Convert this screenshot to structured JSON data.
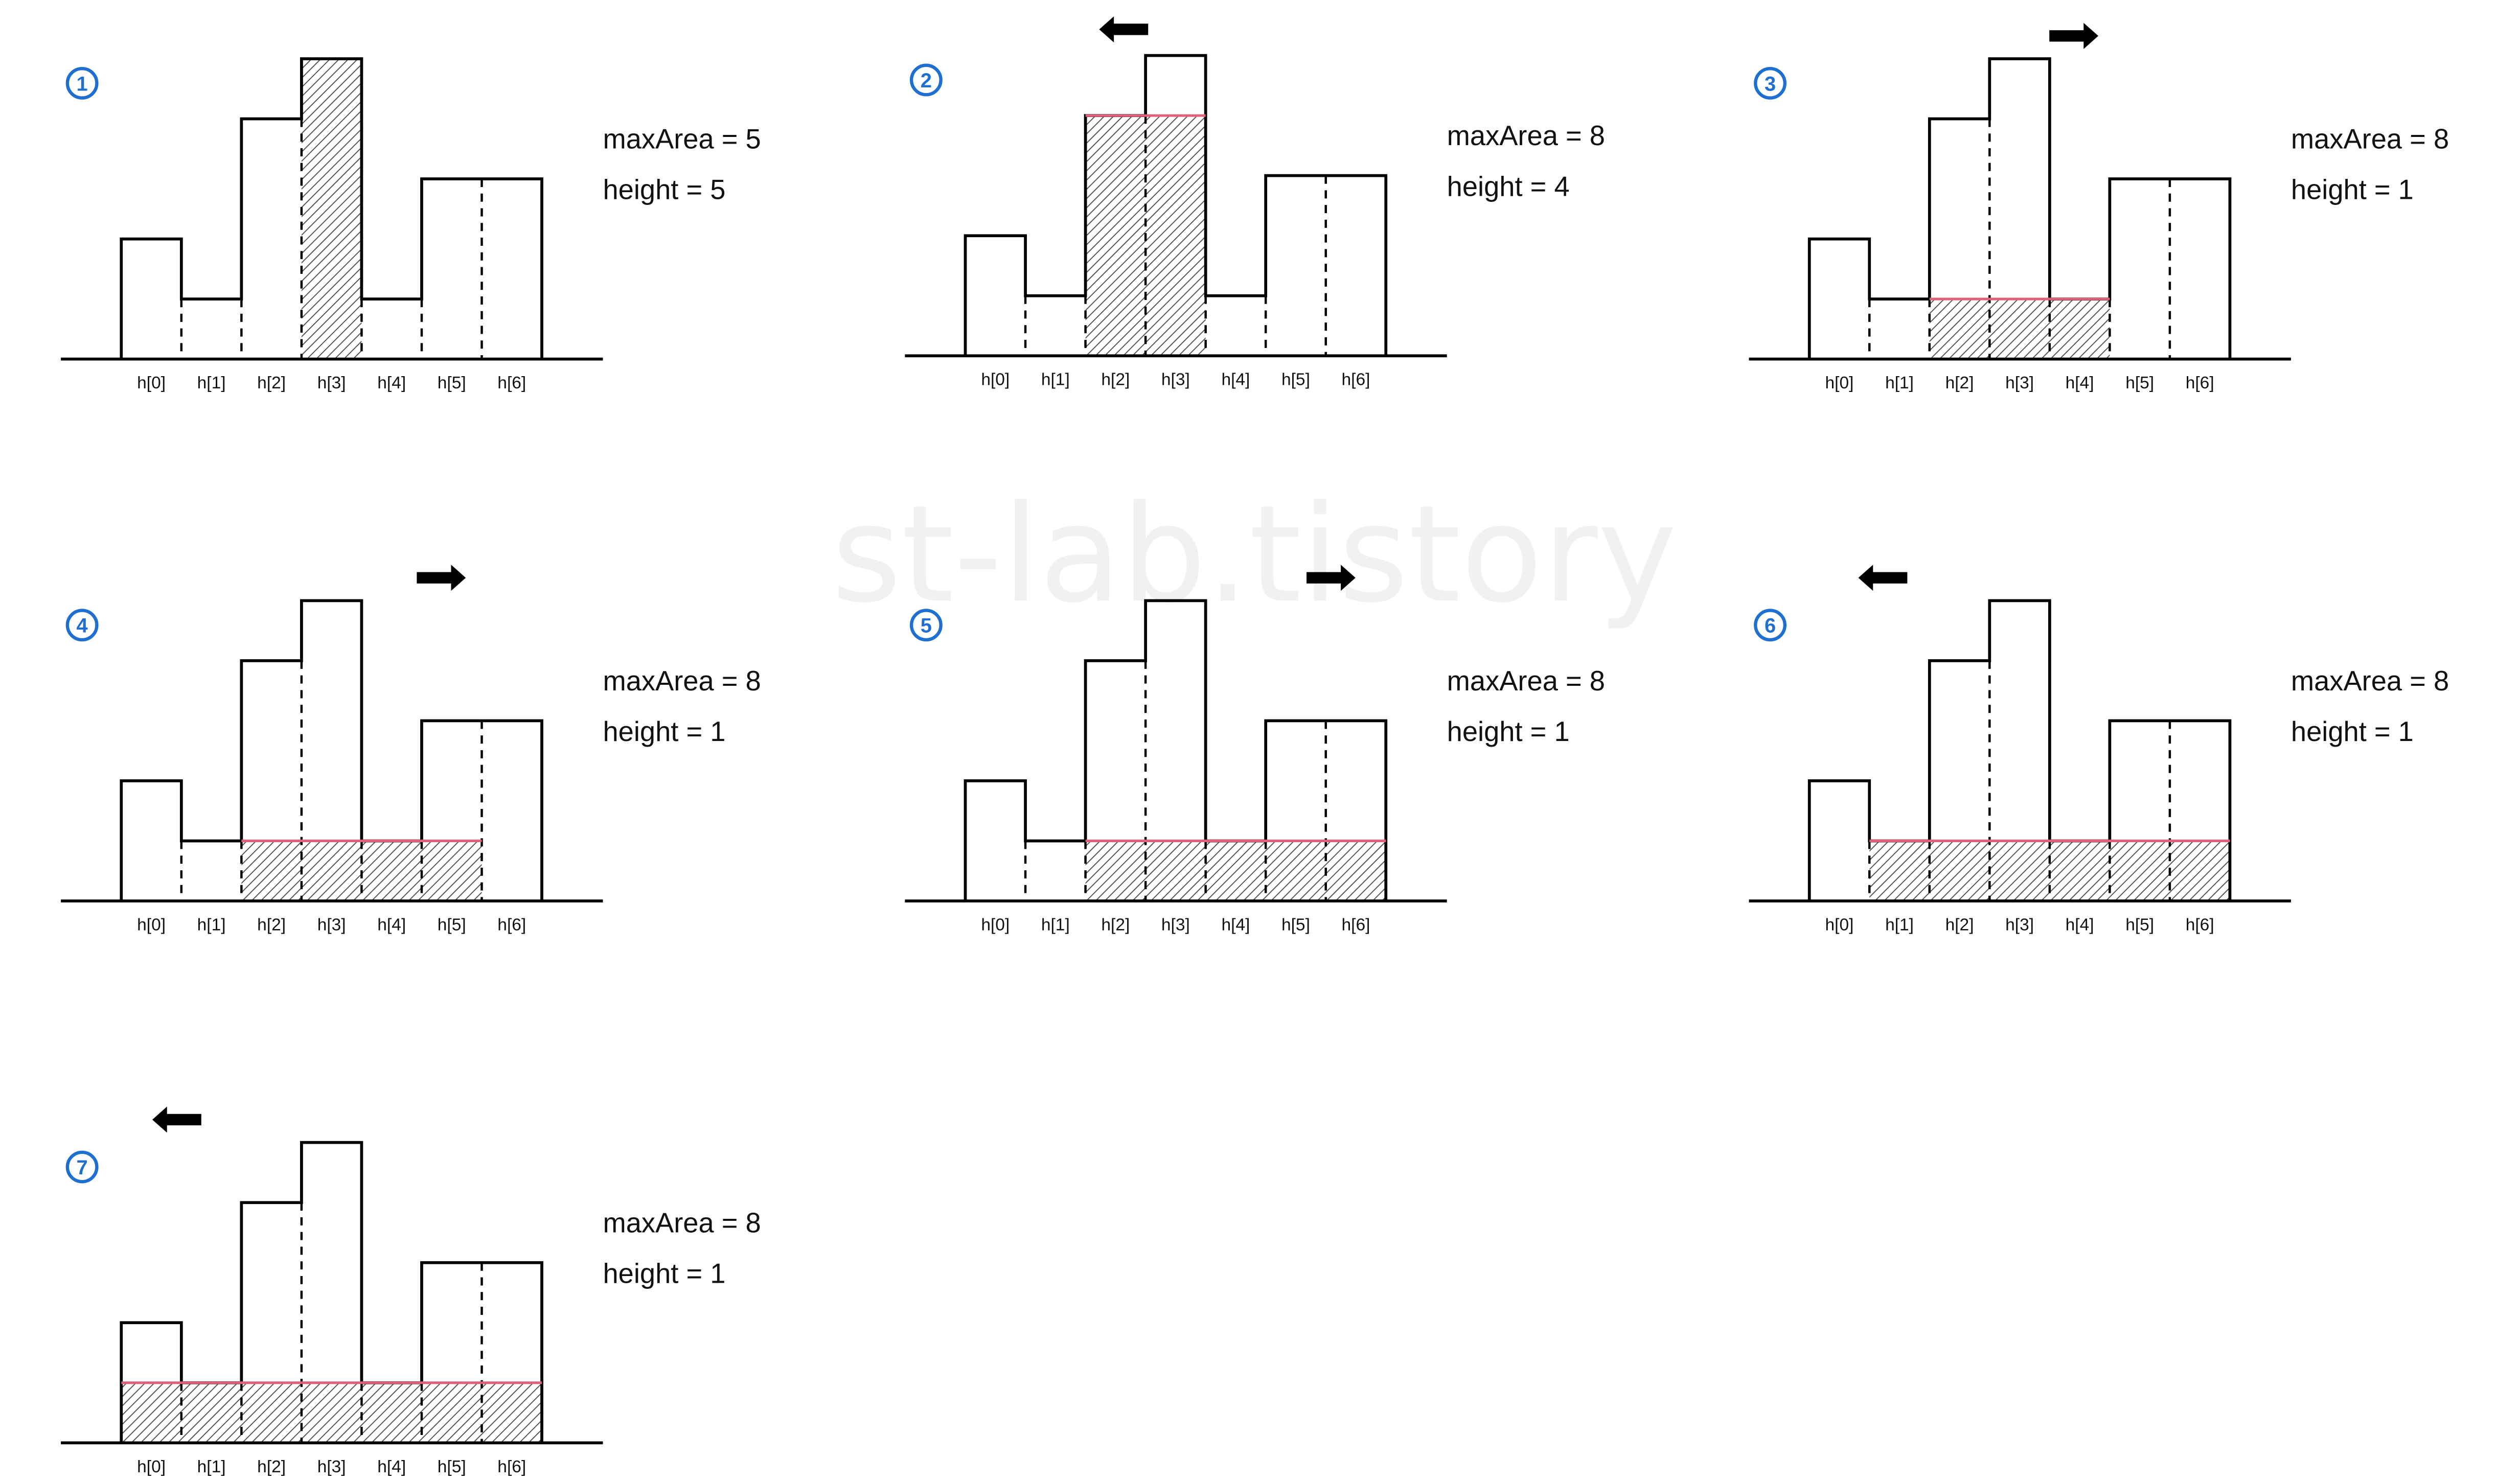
{
  "watermark": "st-lab.tistory",
  "bar_labels": [
    "h[0]",
    "h[1]",
    "h[2]",
    "h[3]",
    "h[4]",
    "h[5]",
    "h[6]"
  ],
  "bar_heights": [
    2,
    1,
    4,
    5,
    1,
    3,
    3
  ],
  "colors": {
    "outline": "#000000",
    "hatch": "#444444",
    "height_line": "#e0607a",
    "step_badge": "#1f6fd1",
    "watermark": "#f1f1f1"
  },
  "panels": [
    {
      "step": "1",
      "arrow": "none",
      "shaded_from": 3,
      "shaded_to": 3,
      "shade_height": 5,
      "maxArea": "maxArea = 5",
      "height": "height = 5"
    },
    {
      "step": "2",
      "arrow": "left",
      "shaded_from": 2,
      "shaded_to": 3,
      "shade_height": 4,
      "maxArea": "maxArea = 8",
      "height": "height = 4"
    },
    {
      "step": "3",
      "arrow": "right",
      "shaded_from": 2,
      "shaded_to": 4,
      "shade_height": 1,
      "maxArea": "maxArea = 8",
      "height": "height = 1"
    },
    {
      "step": "4",
      "arrow": "right",
      "shaded_from": 2,
      "shaded_to": 5,
      "shade_height": 1,
      "maxArea": "maxArea = 8",
      "height": "height = 1"
    },
    {
      "step": "5",
      "arrow": "right",
      "shaded_from": 2,
      "shaded_to": 6,
      "shade_height": 1,
      "maxArea": "maxArea = 8",
      "height": "height = 1"
    },
    {
      "step": "6",
      "arrow": "left",
      "shaded_from": 1,
      "shaded_to": 6,
      "shade_height": 1,
      "maxArea": "maxArea = 8",
      "height": "height = 1"
    },
    {
      "step": "7",
      "arrow": "left",
      "shaded_from": 0,
      "shaded_to": 6,
      "shade_height": 1,
      "maxArea": "maxArea = 8",
      "height": "height = 1"
    }
  ]
}
